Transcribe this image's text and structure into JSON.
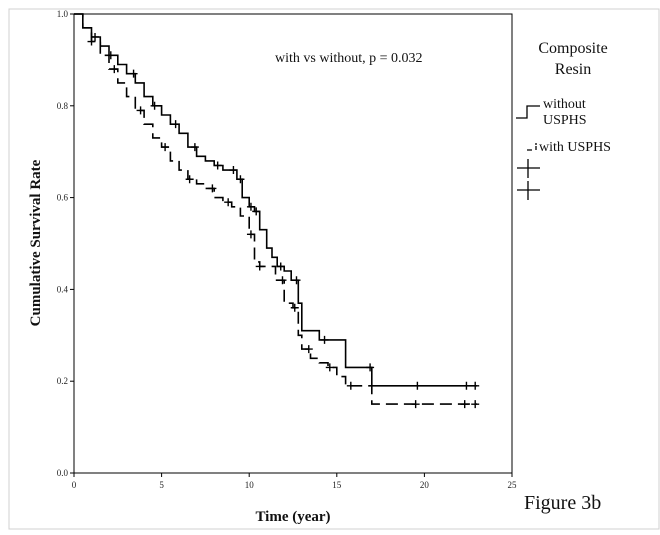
{
  "figure_label": "Figure 3b",
  "chart_data": {
    "type": "line",
    "subtype": "kaplan-meier",
    "title": "",
    "xlabel": "Time (year)",
    "ylabel": "Cumulative Survival Rate",
    "xlim": [
      0,
      25
    ],
    "ylim": [
      0.0,
      1.0
    ],
    "xticks": [
      0,
      5,
      10,
      15,
      20,
      25
    ],
    "yticks": [
      0.0,
      0.2,
      0.4,
      0.6,
      0.8,
      1.0
    ],
    "xtick_labels": [
      "0",
      "5",
      "10",
      "15",
      "20",
      "25"
    ],
    "ytick_labels": [
      "0.0",
      "0.2",
      "0.4",
      "0.6",
      "0.8",
      "1.0"
    ],
    "grid": false,
    "annotation": "with vs without, p = 0.032",
    "legend": {
      "title_lines": [
        "Composite",
        "Resin"
      ],
      "placement": "right-outside",
      "entries": [
        {
          "label_lines": [
            "without",
            "USPHS"
          ],
          "marker": "solid-step"
        },
        {
          "label_lines": [
            "with USPHS"
          ],
          "marker": "dashed-step"
        },
        {
          "label_lines": [
            ""
          ],
          "marker": "censor-plus"
        },
        {
          "label_lines": [
            ""
          ],
          "marker": "censor-plus"
        }
      ]
    },
    "series": [
      {
        "name": "without USPHS",
        "style": "solid",
        "color": "#000000",
        "x": [
          0,
          0.5,
          1,
          1.5,
          2,
          2.5,
          3,
          3.5,
          4,
          4.5,
          5,
          5.5,
          6,
          6.5,
          7,
          7.5,
          8,
          8.5,
          9,
          9.3,
          9.6,
          10,
          10.3,
          10.6,
          11,
          11.3,
          11.6,
          12,
          12.4,
          12.8,
          13,
          13.5,
          14,
          14.5,
          15,
          15.5,
          16,
          17,
          20,
          22,
          23
        ],
        "y": [
          1.0,
          0.97,
          0.95,
          0.93,
          0.91,
          0.89,
          0.87,
          0.85,
          0.82,
          0.8,
          0.78,
          0.76,
          0.74,
          0.71,
          0.69,
          0.68,
          0.67,
          0.66,
          0.66,
          0.64,
          0.6,
          0.58,
          0.57,
          0.53,
          0.49,
          0.47,
          0.45,
          0.44,
          0.42,
          0.37,
          0.31,
          0.31,
          0.29,
          0.29,
          0.29,
          0.23,
          0.23,
          0.19,
          0.19,
          0.19,
          0.19
        ],
        "censor_x": [
          1.2,
          2.1,
          3.4,
          4.6,
          5.8,
          6.9,
          8.2,
          9.1,
          9.5,
          10.1,
          10.4,
          11.8,
          12.7,
          14.3,
          16.9,
          19.6,
          22.4,
          22.9
        ]
      },
      {
        "name": "with USPHS",
        "style": "dashed",
        "color": "#000000",
        "x": [
          0,
          0.5,
          1,
          1.5,
          2,
          2.5,
          3,
          3.5,
          4,
          4.5,
          5,
          5.5,
          6,
          6.5,
          7,
          7.5,
          8,
          8.5,
          9,
          9.5,
          10,
          10.3,
          10.6,
          11,
          11.5,
          12,
          12.5,
          12.8,
          13,
          13.5,
          14,
          14.5,
          15,
          15.5,
          16,
          17,
          20,
          22,
          23
        ],
        "y": [
          1.0,
          0.97,
          0.94,
          0.91,
          0.88,
          0.85,
          0.82,
          0.79,
          0.76,
          0.73,
          0.71,
          0.68,
          0.66,
          0.64,
          0.63,
          0.62,
          0.6,
          0.59,
          0.58,
          0.56,
          0.52,
          0.46,
          0.45,
          0.45,
          0.42,
          0.37,
          0.36,
          0.3,
          0.27,
          0.25,
          0.24,
          0.23,
          0.21,
          0.19,
          0.19,
          0.15,
          0.15,
          0.15,
          0.15
        ],
        "censor_x": [
          1.0,
          2.3,
          3.8,
          5.2,
          6.6,
          7.9,
          8.8,
          10.1,
          10.6,
          11.9,
          12.6,
          13.4,
          14.6,
          15.8,
          19.5,
          22.3,
          22.9
        ]
      }
    ]
  }
}
